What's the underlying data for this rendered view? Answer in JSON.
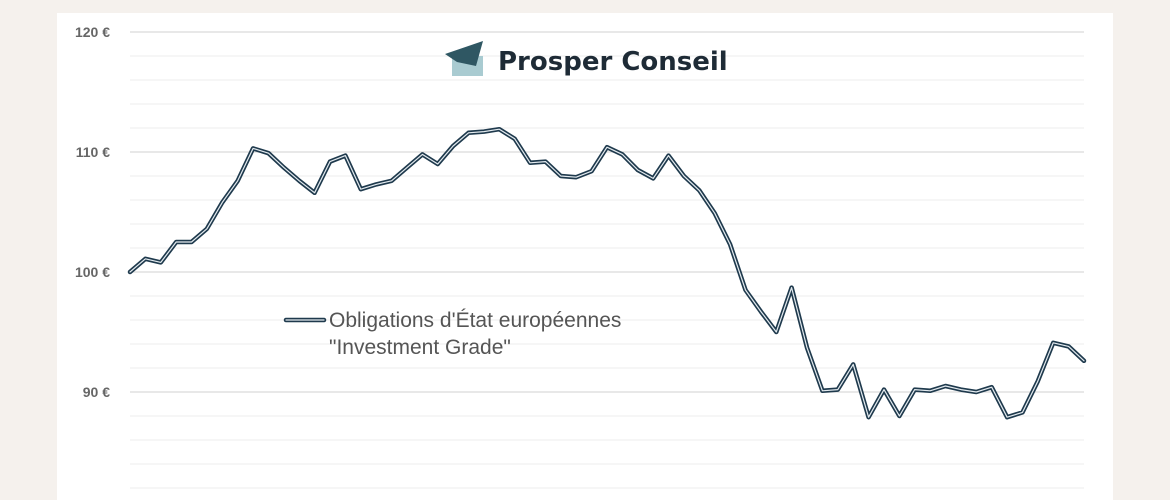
{
  "brand": {
    "name": "Prosper Conseil",
    "colors": {
      "dark": "#2f5763",
      "light": "#a9cbd1"
    },
    "icon": "folded-banner-logo-icon"
  },
  "chart_data": {
    "type": "line",
    "ylim": [
      80,
      120
    ],
    "y_ticks": [
      {
        "value": 120,
        "label": "120 €"
      },
      {
        "value": 110,
        "label": "110 €"
      },
      {
        "value": 100,
        "label": "100 €"
      },
      {
        "value": 90,
        "label": "90 €"
      }
    ],
    "grid": true,
    "minor_grid_step": 2,
    "legend": {
      "placement": "center-left",
      "line1": "Obligations d'État européennes",
      "line2": "\"Investment Grade\""
    },
    "series": [
      {
        "name": "Obligations d'État européennes \"Investment Grade\"",
        "color": "#1f3a4d",
        "values": [
          100.0,
          101.1,
          100.8,
          102.5,
          102.5,
          103.6,
          105.8,
          107.6,
          110.3,
          109.9,
          108.7,
          107.6,
          106.6,
          109.2,
          109.7,
          106.9,
          107.3,
          107.6,
          108.7,
          109.8,
          109.0,
          110.5,
          111.6,
          111.7,
          111.9,
          111.1,
          109.1,
          109.2,
          108.0,
          107.9,
          108.4,
          110.4,
          109.8,
          108.5,
          107.8,
          109.7,
          108.0,
          106.8,
          104.9,
          102.3,
          98.5,
          96.7,
          95.0,
          98.7,
          93.7,
          90.1,
          90.2,
          92.3,
          87.9,
          90.2,
          88.0,
          90.2,
          90.1,
          90.5,
          90.2,
          90.0,
          90.4,
          87.9,
          88.3,
          90.9,
          94.1,
          93.8,
          92.6
        ]
      }
    ]
  }
}
